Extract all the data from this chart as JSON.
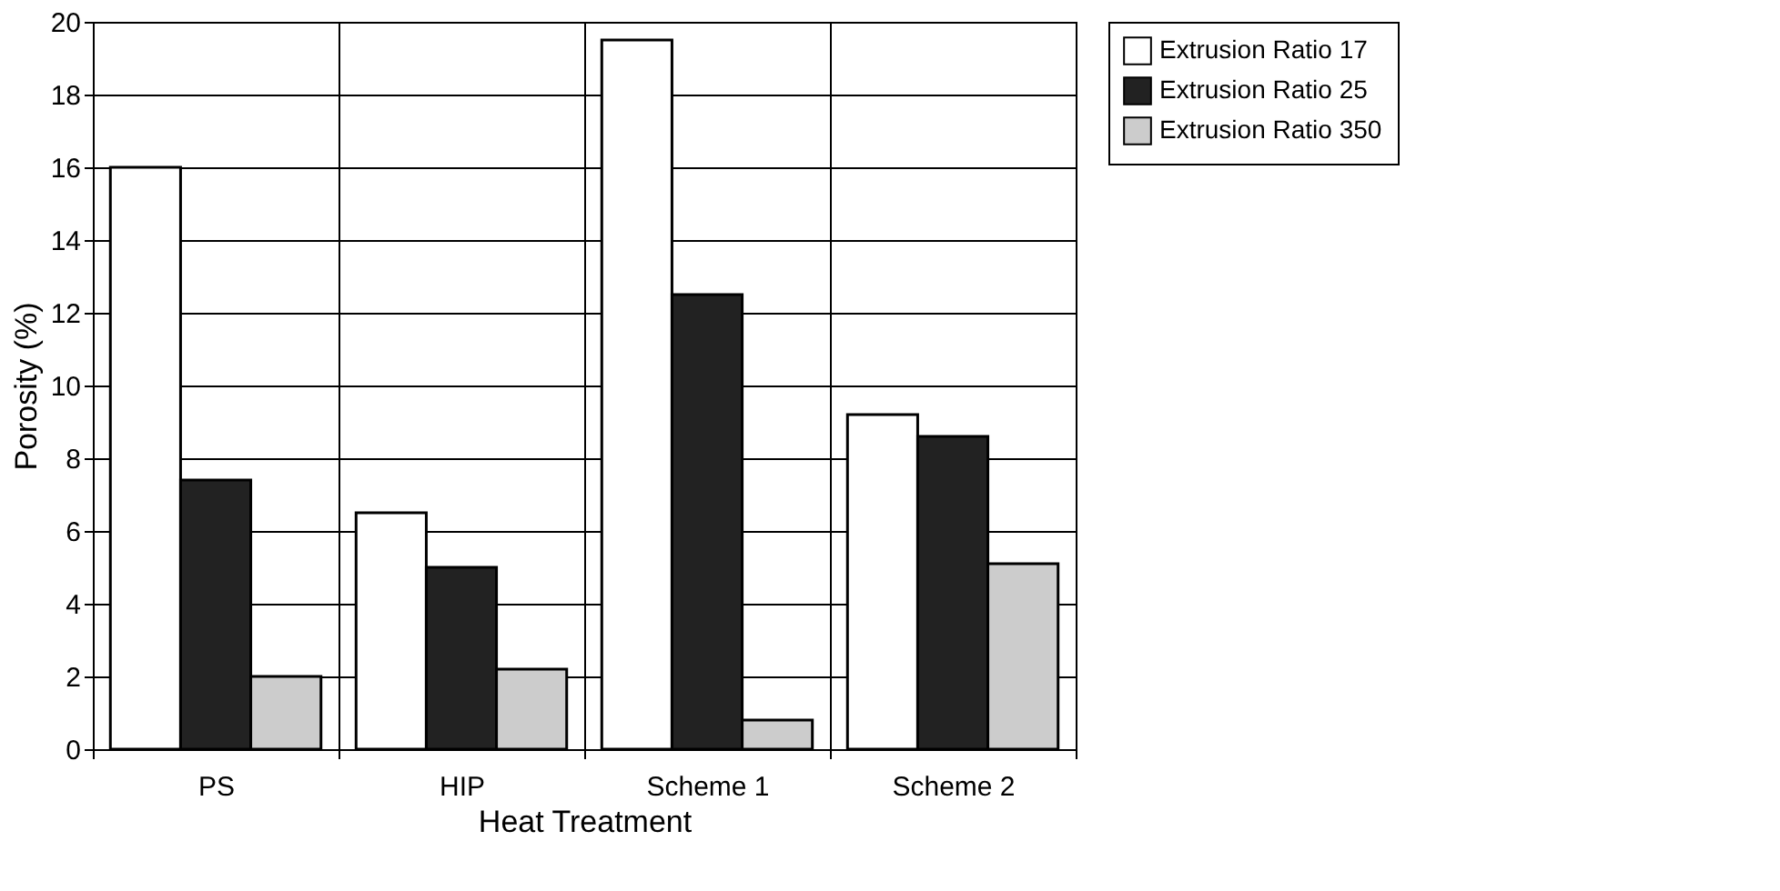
{
  "chart_data": {
    "type": "bar",
    "xlabel": "Heat Treatment",
    "ylabel": "Porosity (%)",
    "categories": [
      "PS",
      "HIP",
      "Scheme 1",
      "Scheme 2"
    ],
    "series": [
      {
        "name": "Extrusion Ratio 17",
        "color": "#ffffff",
        "values": [
          16.0,
          6.5,
          19.5,
          9.2
        ]
      },
      {
        "name": "Extrusion Ratio 25",
        "color": "#222222",
        "values": [
          7.4,
          5.0,
          12.5,
          8.6
        ]
      },
      {
        "name": "Extrusion Ratio 350",
        "color": "#cccccc",
        "values": [
          2.0,
          2.2,
          0.8,
          5.1
        ]
      }
    ],
    "ylim": [
      0,
      20
    ],
    "yticks": [
      0,
      2,
      4,
      6,
      8,
      10,
      12,
      14,
      16,
      18,
      20
    ],
    "grid": true,
    "legend": "top right"
  }
}
